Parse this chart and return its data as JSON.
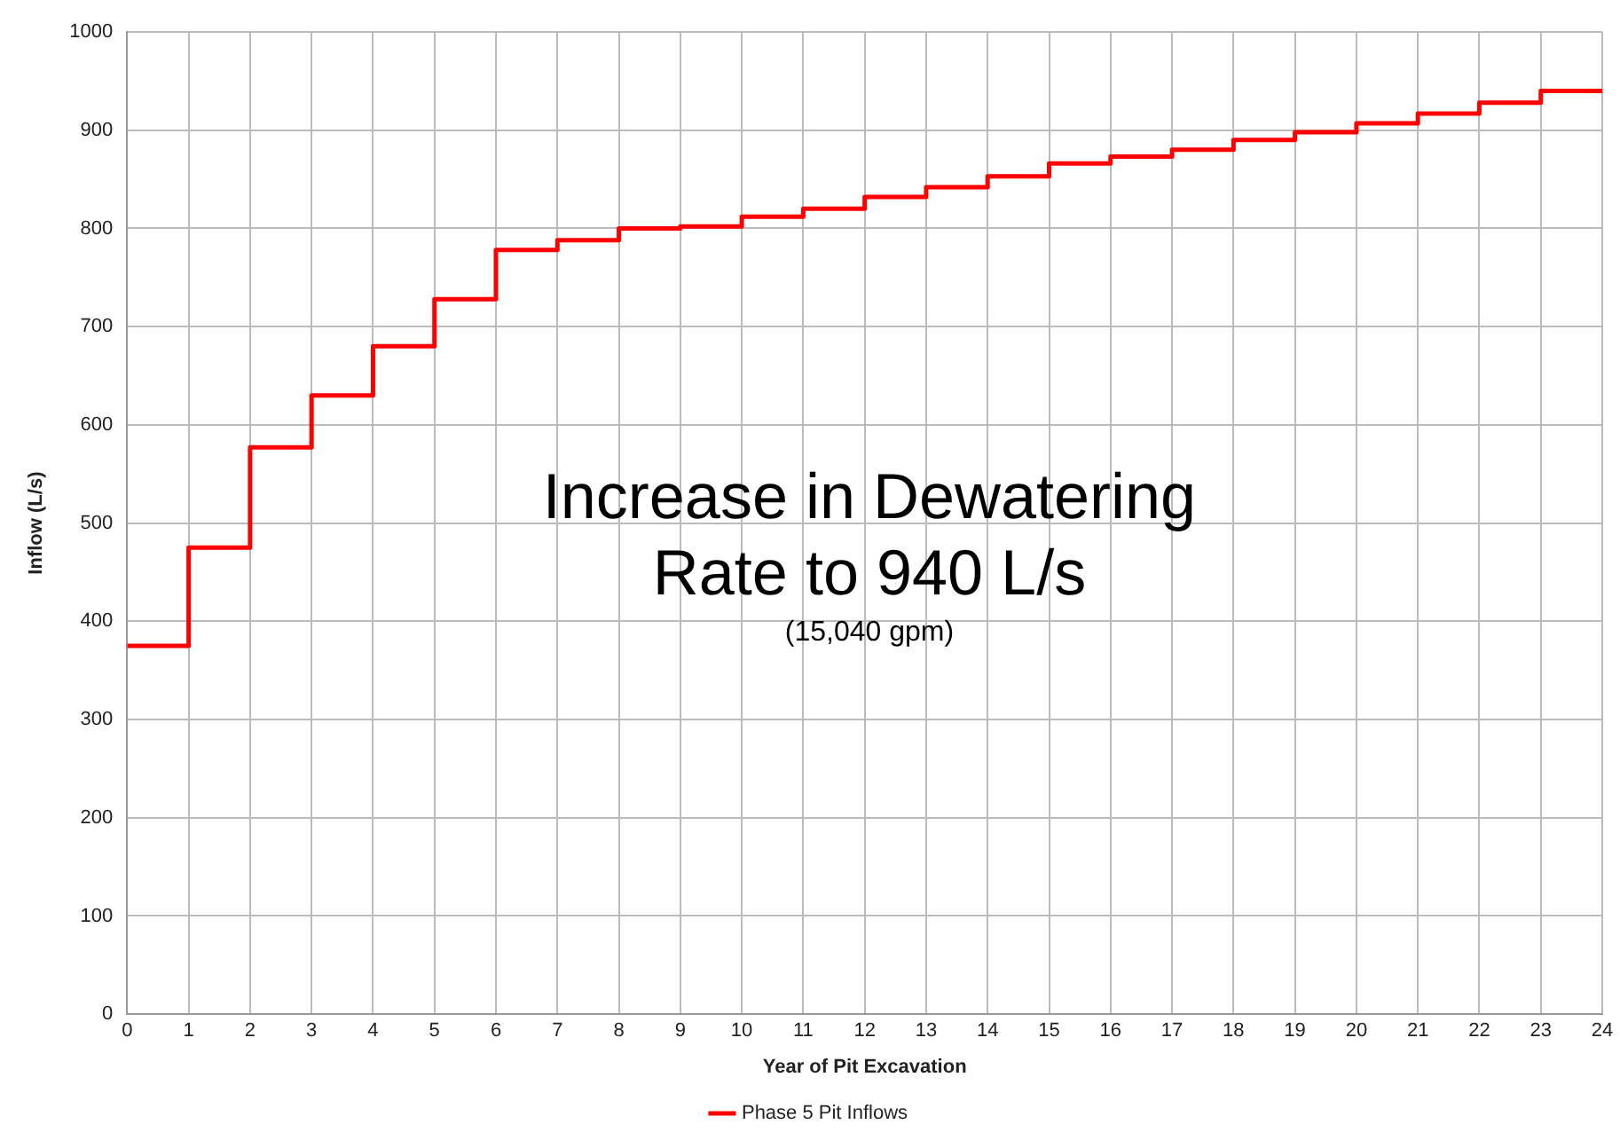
{
  "chart_data": {
    "type": "step",
    "xlabel": "Year of Pit Excavation",
    "ylabel": "Inflow (L/s)",
    "x": [
      0,
      1,
      2,
      3,
      4,
      5,
      6,
      7,
      8,
      9,
      10,
      11,
      12,
      13,
      14,
      15,
      16,
      17,
      18,
      19,
      20,
      21,
      22,
      23,
      24
    ],
    "series": [
      {
        "name": "Phase 5 Pit Inflows",
        "color": "#ff0000",
        "values": [
          375,
          475,
          577,
          630,
          680,
          728,
          778,
          788,
          800,
          802,
          812,
          820,
          832,
          842,
          853,
          866,
          873,
          880,
          890,
          898,
          907,
          917,
          928,
          940,
          940
        ]
      }
    ],
    "xlim": [
      0,
      24
    ],
    "xticks": [
      0,
      1,
      2,
      3,
      4,
      5,
      6,
      7,
      8,
      9,
      10,
      11,
      12,
      13,
      14,
      15,
      16,
      17,
      18,
      19,
      20,
      21,
      22,
      23,
      24
    ],
    "ylim": [
      0,
      1000
    ],
    "yticks": [
      0,
      100,
      200,
      300,
      400,
      500,
      600,
      700,
      800,
      900,
      1000
    ],
    "grid": true,
    "legend": "bottom",
    "marker": "none",
    "line_style": "solid",
    "annotations": [
      "Increase in Dewatering Rate to 940 L/s",
      "(15,040 gpm)"
    ]
  }
}
